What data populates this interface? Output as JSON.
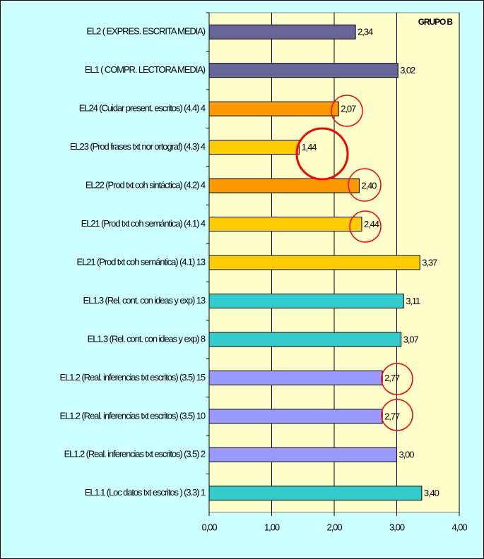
{
  "chart_data": {
    "type": "bar",
    "orientation": "horizontal",
    "title": "GRUPO B",
    "categories": [
      "EL2 ( EXPRES. ESCRITA MEDIA)",
      "EL1 ( COMPR. LECTORA MEDIA)",
      "EL24 (Cuidar present. escritos) (4.4) 4",
      "EL23 (Prod frases txt nor ortograf) (4.3) 4",
      "EL22 (Prod txt coh sintáctica) (4.2) 4",
      "EL21 (Prod txt coh semántica) (4.1) 4",
      "EL21 (Prod txt coh semántica) (4.1) 13",
      "EL1.3 (Rel. cont. con ideas y exp) 13",
      "EL1.3 (Rel. cont. con ideas y exp) 8",
      "EL1.2 (Real. inferencias txt escritos) (3.5) 15",
      "EL1.2 (Real. inferencias txt escritos) (3.5) 10",
      "EL1.2 (Real. inferencias txt escritos) (3.5) 2",
      "EL1.1 (Loc datos txt escritos ) (3.3) 1"
    ],
    "values": [
      2.34,
      3.02,
      2.07,
      1.44,
      2.4,
      2.44,
      3.37,
      3.11,
      3.07,
      2.77,
      2.77,
      3.0,
      3.4
    ],
    "value_labels": [
      "2,34",
      "3,02",
      "2,07",
      "1,44",
      "2,40",
      "2,44",
      "3,37",
      "3,11",
      "3,07",
      "2,77",
      "2,77",
      "3,00",
      "3,40"
    ],
    "colors": [
      "#666699",
      "#666699",
      "#ff9900",
      "#ffcc00",
      "#ff9900",
      "#ffcc00",
      "#ffcc00",
      "#33cccc",
      "#33cccc",
      "#9999ff",
      "#9999ff",
      "#9999ff",
      "#33cccc"
    ],
    "xlim": [
      0,
      4
    ],
    "xticks": [
      {
        "value": 0,
        "label": "0,00"
      },
      {
        "value": 1,
        "label": "1,00"
      },
      {
        "value": 2,
        "label": "2,00"
      },
      {
        "value": 3,
        "label": "3,00"
      },
      {
        "value": 4,
        "label": "4,00"
      }
    ],
    "grid": true
  }
}
